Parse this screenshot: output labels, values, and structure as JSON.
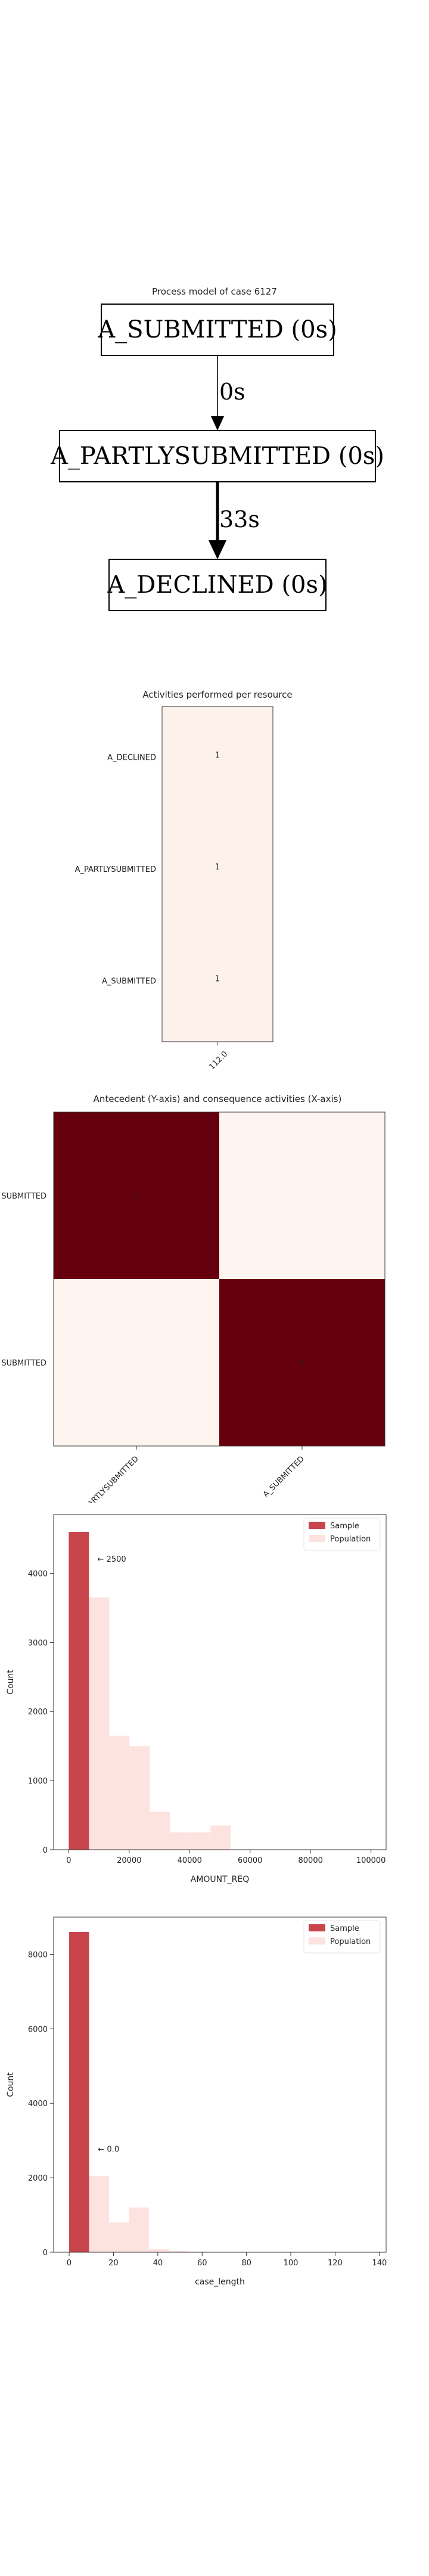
{
  "process_model": {
    "title": "Process model of case 6127",
    "nodes": [
      "A_SUBMITTED (0s)",
      "A_PARTLYSUBMITTED (0s)",
      "A_DECLINED (0s)"
    ],
    "edges": [
      {
        "from": 0,
        "to": 1,
        "label": "0s",
        "weight": 1
      },
      {
        "from": 1,
        "to": 2,
        "label": "33s",
        "weight": 3
      }
    ]
  },
  "chart_data": [
    {
      "type": "heatmap",
      "title": "Activities performed per resource",
      "rows": [
        "A_DECLINED",
        "A_PARTLYSUBMITTED",
        "A_SUBMITTED"
      ],
      "columns": [
        "112.0"
      ],
      "values": [
        [
          1
        ],
        [
          1
        ],
        [
          1
        ]
      ],
      "color": "#fdf1ec"
    },
    {
      "type": "heatmap",
      "title": "Antecedent (Y-axis) and consequence activities (X-axis)",
      "rows": [
        "A_SUBMITTED",
        "A_PARTLYSUBMITTED"
      ],
      "row_labels_visible": [
        "SUBMITTED",
        "SUBMITTED"
      ],
      "columns": [
        "A_PARTLYSUBMITTED",
        "A_SUBMITTED"
      ],
      "values": [
        [
          1,
          null
        ],
        [
          null,
          1
        ]
      ],
      "high_color": "#67000d",
      "low_color": "#fff5f0"
    },
    {
      "type": "bar",
      "xlabel": "AMOUNT_REQ",
      "ylabel": "Count",
      "xlim": [
        -5000,
        105000
      ],
      "ylim": [
        0,
        4850
      ],
      "xticks": [
        0,
        20000,
        40000,
        60000,
        80000,
        100000
      ],
      "yticks": [
        0,
        1000,
        2000,
        3000,
        4000
      ],
      "bin_width": 6700,
      "series": [
        {
          "name": "Sample",
          "color": "#c8464b",
          "bins": [
            [
              0,
              4600
            ]
          ]
        },
        {
          "name": "Population",
          "color": "#fde3e0",
          "bins": [
            [
              6700,
              3650
            ],
            [
              13400,
              1650
            ],
            [
              20100,
              1500
            ],
            [
              26800,
              550
            ],
            [
              33500,
              250
            ],
            [
              40200,
              250
            ],
            [
              46900,
              350
            ]
          ]
        }
      ],
      "annotation": {
        "text": "← 2500",
        "x": 9500,
        "y": 4170
      },
      "legend": "top-right",
      "legend_entries": [
        "Sample",
        "Population"
      ]
    },
    {
      "type": "bar",
      "xlabel": "case_length",
      "ylabel": "Count",
      "xlim": [
        -7,
        143
      ],
      "ylim": [
        0,
        9000
      ],
      "xticks": [
        0,
        20,
        40,
        60,
        80,
        100,
        120,
        140
      ],
      "yticks": [
        0,
        2000,
        4000,
        6000,
        8000
      ],
      "bin_width": 9,
      "series": [
        {
          "name": "Sample",
          "color": "#c8464b",
          "bins": [
            [
              0,
              8600
            ]
          ]
        },
        {
          "name": "Population",
          "color": "#fde3e0",
          "bins": [
            [
              9,
              2050
            ],
            [
              18,
              800
            ],
            [
              27,
              1200
            ],
            [
              36,
              80
            ],
            [
              45,
              30
            ],
            [
              54,
              15
            ]
          ]
        }
      ],
      "annotation": {
        "text": "← 0.0",
        "x": 13,
        "y": 2700
      },
      "legend": "top-right",
      "legend_entries": [
        "Sample",
        "Population"
      ]
    }
  ]
}
